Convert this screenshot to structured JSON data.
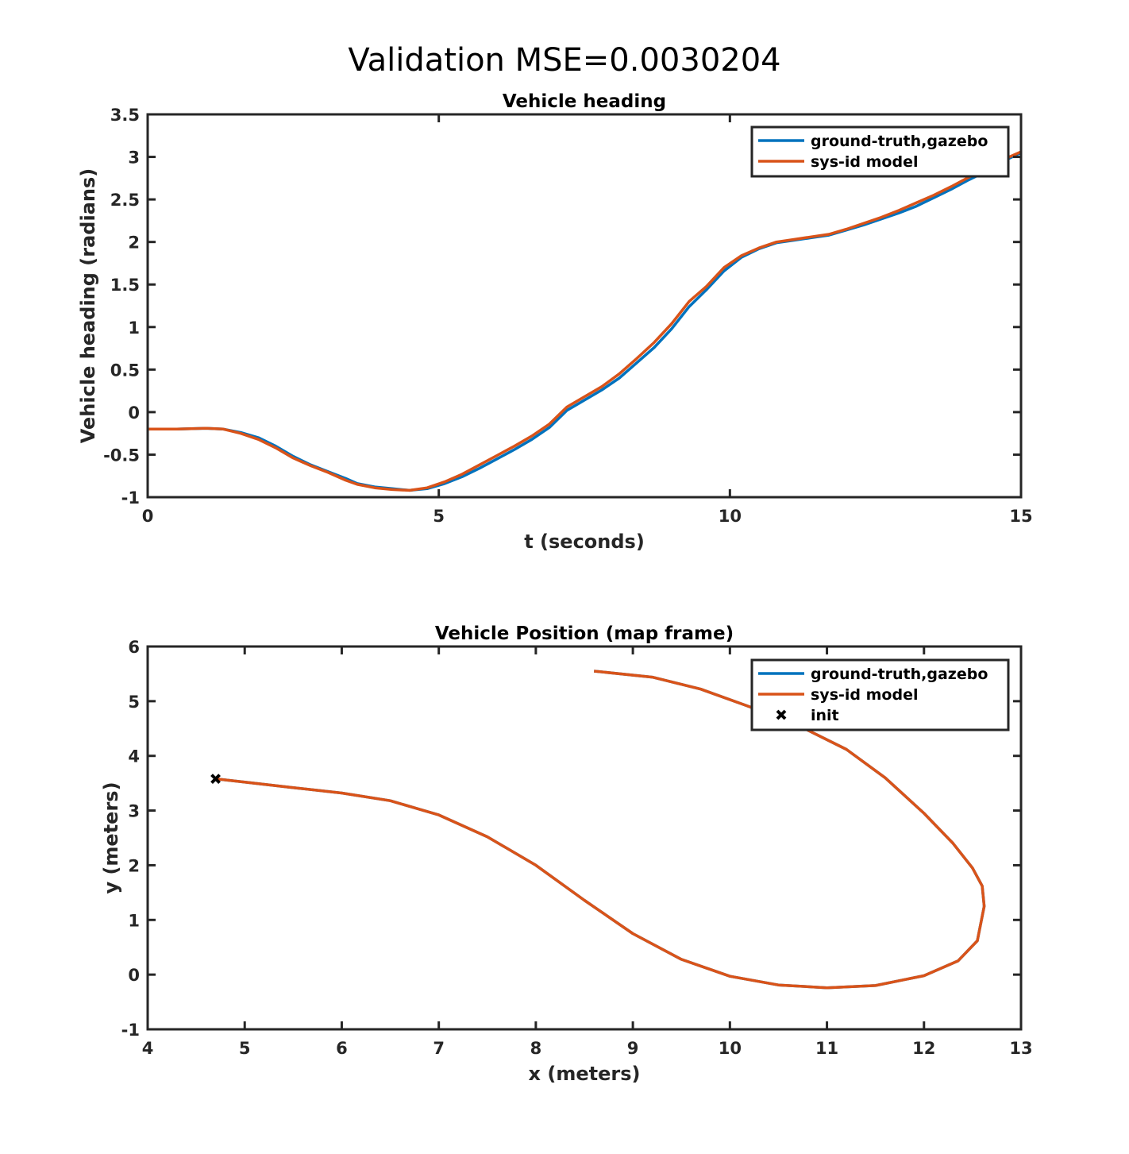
{
  "figure_title": "Validation MSE=0.0030204",
  "colors": {
    "ground_truth": "#0072BD",
    "sysid": "#D95319",
    "init": "#000000"
  },
  "chart_data": [
    {
      "type": "line",
      "title": "Vehicle heading",
      "xlabel": "t (seconds)",
      "ylabel": "Vehicle heading (radians)",
      "xlim": [
        0,
        15
      ],
      "ylim": [
        -1,
        3.5
      ],
      "xticks": [
        0,
        5,
        10,
        15
      ],
      "yticks": [
        -1,
        -0.5,
        0,
        0.5,
        1,
        1.5,
        2,
        2.5,
        3,
        3.5
      ],
      "grid": false,
      "legend_position": "top-right",
      "series": [
        {
          "name": "ground-truth,gazebo",
          "color": "#0072BD",
          "x": [
            0,
            0.5,
            1.0,
            1.3,
            1.6,
            1.9,
            2.2,
            2.5,
            2.8,
            3.1,
            3.4,
            3.6,
            3.9,
            4.2,
            4.5,
            4.8,
            5.1,
            5.4,
            5.7,
            6.0,
            6.3,
            6.6,
            6.9,
            7.2,
            7.5,
            7.8,
            8.1,
            8.4,
            8.7,
            9.0,
            9.3,
            9.6,
            9.9,
            10.2,
            10.5,
            10.8,
            11.1,
            11.4,
            11.7,
            12.0,
            12.3,
            12.6,
            12.9,
            13.2,
            13.5,
            13.8,
            14.1,
            14.4,
            14.7,
            15.0
          ],
          "y": [
            -0.2,
            -0.2,
            -0.19,
            -0.2,
            -0.24,
            -0.3,
            -0.4,
            -0.52,
            -0.62,
            -0.7,
            -0.78,
            -0.84,
            -0.88,
            -0.9,
            -0.92,
            -0.9,
            -0.84,
            -0.76,
            -0.66,
            -0.55,
            -0.44,
            -0.32,
            -0.18,
            0.02,
            0.14,
            0.26,
            0.4,
            0.58,
            0.76,
            0.98,
            1.24,
            1.44,
            1.66,
            1.82,
            1.92,
            1.99,
            2.02,
            2.05,
            2.08,
            2.14,
            2.2,
            2.27,
            2.34,
            2.42,
            2.52,
            2.62,
            2.73,
            2.83,
            2.95,
            3.05
          ]
        },
        {
          "name": "sys-id model",
          "color": "#D95319",
          "x": [
            0,
            0.5,
            1.0,
            1.3,
            1.6,
            1.9,
            2.2,
            2.5,
            2.8,
            3.1,
            3.4,
            3.6,
            3.9,
            4.2,
            4.5,
            4.8,
            5.1,
            5.4,
            5.7,
            6.0,
            6.3,
            6.6,
            6.9,
            7.2,
            7.5,
            7.8,
            8.1,
            8.4,
            8.7,
            9.0,
            9.3,
            9.6,
            9.9,
            10.2,
            10.5,
            10.8,
            11.1,
            11.4,
            11.7,
            12.0,
            12.3,
            12.6,
            12.9,
            13.2,
            13.5,
            13.8,
            14.1,
            14.4,
            14.7,
            15.0
          ],
          "y": [
            -0.2,
            -0.2,
            -0.19,
            -0.2,
            -0.25,
            -0.32,
            -0.42,
            -0.54,
            -0.63,
            -0.71,
            -0.8,
            -0.85,
            -0.89,
            -0.91,
            -0.92,
            -0.89,
            -0.82,
            -0.73,
            -0.62,
            -0.51,
            -0.4,
            -0.28,
            -0.14,
            0.06,
            0.18,
            0.3,
            0.45,
            0.63,
            0.82,
            1.04,
            1.3,
            1.48,
            1.7,
            1.84,
            1.93,
            2.0,
            2.03,
            2.06,
            2.09,
            2.15,
            2.22,
            2.29,
            2.37,
            2.46,
            2.55,
            2.65,
            2.76,
            2.86,
            2.97,
            3.06
          ]
        }
      ]
    },
    {
      "type": "line",
      "title": "Vehicle Position (map frame)",
      "xlabel": "x (meters)",
      "ylabel": "y (meters)",
      "xlim": [
        4,
        13
      ],
      "ylim": [
        -1,
        6
      ],
      "xticks": [
        4,
        5,
        6,
        7,
        8,
        9,
        10,
        11,
        12,
        13
      ],
      "yticks": [
        -1,
        0,
        1,
        2,
        3,
        4,
        5,
        6
      ],
      "grid": false,
      "legend_position": "top-right",
      "series": [
        {
          "name": "ground-truth,gazebo",
          "color": "#0072BD",
          "x": [
            4.7,
            5.0,
            5.5,
            6.0,
            6.5,
            7.0,
            7.5,
            8.0,
            8.5,
            9.0,
            9.5,
            10.0,
            10.5,
            11.0,
            11.5,
            12.0,
            12.35,
            12.55,
            12.62,
            12.6,
            12.5,
            12.3,
            12.0,
            11.6,
            11.2,
            10.7,
            10.2,
            9.7,
            9.2,
            8.6
          ],
          "y": [
            3.58,
            3.52,
            3.42,
            3.32,
            3.18,
            2.92,
            2.52,
            2.0,
            1.36,
            0.75,
            0.28,
            -0.03,
            -0.19,
            -0.24,
            -0.2,
            -0.02,
            0.25,
            0.62,
            1.25,
            1.62,
            1.95,
            2.4,
            2.95,
            3.6,
            4.12,
            4.56,
            4.9,
            5.22,
            5.44,
            5.55
          ]
        },
        {
          "name": "sys-id model",
          "color": "#D95319",
          "x": [
            4.7,
            5.0,
            5.5,
            6.0,
            6.5,
            7.0,
            7.5,
            8.0,
            8.5,
            9.0,
            9.5,
            10.0,
            10.5,
            11.0,
            11.5,
            12.0,
            12.35,
            12.55,
            12.62,
            12.6,
            12.5,
            12.3,
            12.0,
            11.6,
            11.2,
            10.7,
            10.2,
            9.7,
            9.2,
            8.6
          ],
          "y": [
            3.58,
            3.52,
            3.42,
            3.32,
            3.18,
            2.92,
            2.52,
            2.0,
            1.36,
            0.75,
            0.28,
            -0.03,
            -0.19,
            -0.24,
            -0.2,
            -0.02,
            0.25,
            0.62,
            1.25,
            1.62,
            1.95,
            2.4,
            2.95,
            3.6,
            4.12,
            4.56,
            4.9,
            5.22,
            5.44,
            5.55
          ]
        },
        {
          "name": "init",
          "color": "#000000",
          "marker": "x",
          "x": [
            4.7
          ],
          "y": [
            3.58
          ]
        }
      ]
    }
  ]
}
